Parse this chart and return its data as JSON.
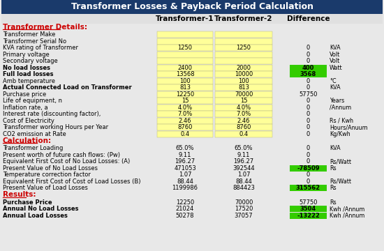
{
  "title": "Transformer Losses & Payback Period Calculation",
  "title_bg": "#1a3a6b",
  "title_color": "white",
  "col_headers": [
    "Transformer-1",
    "Transformer-2",
    "Difference"
  ],
  "section_color": "#cc0000",
  "input_bg": "#ffff99",
  "highlight_green": "#33cc00",
  "rows": [
    {
      "section": "Transformer Details:",
      "type": "header"
    },
    {
      "label": "Transformer Make",
      "t1": "",
      "t2": "",
      "diff": "",
      "unit": "",
      "input": true,
      "bold": false
    },
    {
      "label": "Transformer Serial No",
      "t1": "",
      "t2": "",
      "diff": "",
      "unit": "",
      "input": true,
      "bold": false
    },
    {
      "label": "KVA rating of Transformer",
      "t1": "1250",
      "t2": "1250",
      "diff": "0",
      "unit": "KVA",
      "input": true,
      "bold": false
    },
    {
      "label": "Primary voltage",
      "t1": "",
      "t2": "",
      "diff": "0",
      "unit": "Volt",
      "input": true,
      "bold": false
    },
    {
      "label": "Secondary voltage",
      "t1": "",
      "t2": "",
      "diff": "0",
      "unit": "Volt",
      "input": true,
      "bold": false
    },
    {
      "label": "No load losses",
      "t1": "2400",
      "t2": "2000",
      "diff": "400",
      "unit": "Watt",
      "input": true,
      "bold": true,
      "green_diff": true
    },
    {
      "label": "Full load losses",
      "t1": "13568",
      "t2": "10000",
      "diff": "3568",
      "unit": "",
      "input": true,
      "bold": true,
      "green_diff": true
    },
    {
      "label": "Amb temperature",
      "t1": "100",
      "t2": "100",
      "diff": "0",
      "unit": "°C",
      "input": true,
      "bold": false
    },
    {
      "label": "Actual Connected Load on Transformer",
      "t1": "813",
      "t2": "813",
      "diff": "0",
      "unit": "KVA",
      "input": true,
      "bold": true
    },
    {
      "label": "Purchase price",
      "t1": "12250",
      "t2": "70000",
      "diff": "57750",
      "unit": "",
      "input": true,
      "bold": false
    },
    {
      "label": "Life of equipment, n",
      "t1": "15",
      "t2": "15",
      "diff": "0",
      "unit": "Years",
      "input": true,
      "bold": false
    },
    {
      "label": "Inflation rate, a",
      "t1": "4.0%",
      "t2": "4.0%",
      "diff": "0",
      "unit": "/Annum",
      "input": true,
      "bold": false
    },
    {
      "label": "Interest rate (discounting factor),",
      "t1": "7.0%",
      "t2": "7.0%",
      "diff": "0",
      "unit": "",
      "input": true,
      "bold": false
    },
    {
      "label": "Cost of Electricity",
      "t1": "2.46",
      "t2": "2.46",
      "diff": "0",
      "unit": "Rs / Kwh",
      "input": true,
      "bold": false
    },
    {
      "label": "Transformer working Hours per Year",
      "t1": "8760",
      "t2": "8760",
      "diff": "0",
      "unit": "Hours/Anuum",
      "input": true,
      "bold": false
    },
    {
      "label": "CO2 emission at Rate",
      "t1": "0.4",
      "t2": "0.4",
      "diff": "0",
      "unit": "Kg/Kwh",
      "input": true,
      "bold": false
    },
    {
      "section": "Calculation:",
      "type": "header"
    },
    {
      "label": "Transformer Loading",
      "t1": "65.0%",
      "t2": "65.0%",
      "diff": "0",
      "unit": "KVA",
      "input": false,
      "bold": false
    },
    {
      "label": "Present worth of future cash flows: (Pw)",
      "t1": "9.11",
      "t2": "9.11",
      "diff": "0",
      "unit": "",
      "input": false,
      "bold": false
    },
    {
      "label": "Equivalent First Cost of No Load Losses: (A)",
      "t1": "196.27",
      "t2": "196.27",
      "diff": "0",
      "unit": "Rs/Watt",
      "input": false,
      "bold": false
    },
    {
      "label": "Present Value of No Load Losses",
      "t1": "471053",
      "t2": "392544",
      "diff": "-78509",
      "unit": "Rs",
      "input": false,
      "bold": false,
      "green_diff": true
    },
    {
      "label": "Temperature correction factor",
      "t1": "1.07",
      "t2": "1.07",
      "diff": "0",
      "unit": "",
      "input": false,
      "bold": false
    },
    {
      "label": "Equivalent First Cost of Cost of Load Losses (B)",
      "t1": "88.44",
      "t2": "88.44",
      "diff": "0",
      "unit": "Rs/Watt",
      "input": false,
      "bold": false
    },
    {
      "label": "Present Value of Load Losses",
      "t1": "1199986",
      "t2": "884423",
      "diff": "315562",
      "unit": "Rs",
      "input": false,
      "bold": false,
      "green_diff": true
    },
    {
      "section": "Results:",
      "type": "header"
    },
    {
      "label": "Purchase Price",
      "t1": "12250",
      "t2": "70000",
      "diff": "57750",
      "unit": "Rs",
      "input": false,
      "bold": true
    },
    {
      "label": "Annual No Load Losses",
      "t1": "21024",
      "t2": "17520",
      "diff": "3504",
      "unit": "Kwh /Annum",
      "input": false,
      "bold": true,
      "green_diff": true
    },
    {
      "label": "Annual Load Losses",
      "t1": "50278",
      "t2": "37057",
      "diff": "-13222",
      "unit": "Kwh /Annum",
      "input": false,
      "bold": true,
      "green_diff": true
    }
  ]
}
